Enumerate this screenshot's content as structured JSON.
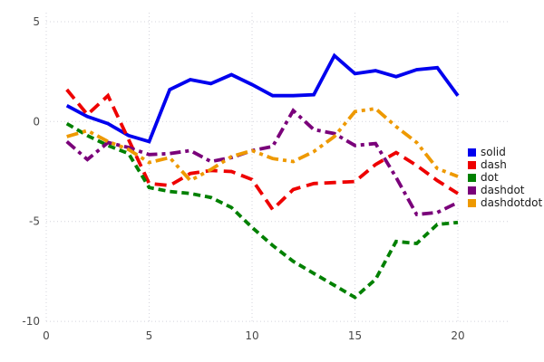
{
  "chart_data": {
    "type": "line",
    "title": "",
    "xlabel": "",
    "ylabel": "",
    "x": [
      1,
      2,
      3,
      4,
      5,
      6,
      7,
      8,
      9,
      10,
      11,
      12,
      13,
      14,
      15,
      16,
      17,
      18,
      19,
      20
    ],
    "series": [
      {
        "name": "solid",
        "color": "#0000ee",
        "line_style": "solid",
        "values": [
          0.8,
          0.25,
          -0.1,
          -0.7,
          -1.0,
          1.6,
          2.1,
          1.9,
          2.35,
          1.85,
          1.3,
          1.3,
          1.35,
          3.3,
          2.4,
          2.55,
          2.25,
          2.6,
          2.7,
          1.3
        ]
      },
      {
        "name": "dash",
        "color": "#ee0000",
        "line_style": "dash",
        "values": [
          1.6,
          0.35,
          1.3,
          -0.9,
          -3.1,
          -3.2,
          -2.6,
          -2.45,
          -2.5,
          -2.9,
          -4.4,
          -3.4,
          -3.1,
          -3.05,
          -3.0,
          -2.15,
          -1.55,
          -2.2,
          -2.95,
          -3.6
        ]
      },
      {
        "name": "dot",
        "color": "#008000",
        "line_style": "dot",
        "values": [
          -0.1,
          -0.7,
          -1.2,
          -1.6,
          -3.3,
          -3.5,
          -3.6,
          -3.8,
          -4.3,
          -5.3,
          -6.2,
          -7.0,
          -7.6,
          -8.2,
          -8.8,
          -7.9,
          -6.0,
          -6.1,
          -5.15,
          -5.05
        ]
      },
      {
        "name": "dashdot",
        "color": "#7a007a",
        "line_style": "dashdot",
        "values": [
          -1.0,
          -1.9,
          -1.05,
          -1.3,
          -1.65,
          -1.6,
          -1.45,
          -2.0,
          -1.8,
          -1.45,
          -1.25,
          0.55,
          -0.4,
          -0.6,
          -1.2,
          -1.1,
          -2.8,
          -4.65,
          -4.55,
          -4.05
        ]
      },
      {
        "name": "dashdotdot",
        "color": "#ee9900",
        "line_style": "dashdotdot",
        "values": [
          -0.75,
          -0.45,
          -1.0,
          -1.4,
          -2.05,
          -1.8,
          -2.95,
          -2.4,
          -1.75,
          -1.45,
          -1.85,
          -2.0,
          -1.5,
          -0.75,
          0.5,
          0.65,
          -0.25,
          -1.05,
          -2.35,
          -2.75
        ]
      }
    ],
    "xticks": [
      0,
      5,
      10,
      15,
      20
    ],
    "yticks": [
      5,
      0,
      -5,
      -10
    ],
    "xlim": [
      0,
      20
    ],
    "ylim": [
      -10,
      5
    ],
    "grid": "dotted",
    "legend_position": "right",
    "legend_labels": [
      "solid",
      "dash",
      "dot",
      "dashdot",
      "dashdotdot"
    ],
    "grid_color": "#d4d4dc",
    "tick_label_color": "#4a4a4a",
    "background_color": "#ffffff"
  }
}
